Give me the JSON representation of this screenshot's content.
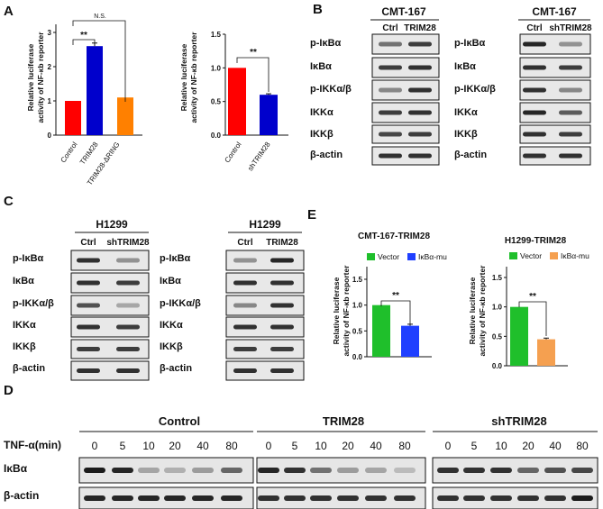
{
  "panel_labels": {
    "a": "A",
    "b": "B",
    "c": "C",
    "d": "D",
    "e": "E"
  },
  "panel_a": {
    "ylabel_line1": "Relative luciferase",
    "ylabel_line2": "activity of NF-κb reporter",
    "chart_left": {
      "categories": [
        "Control",
        "TRIM28",
        "TRIM28-ΔRING"
      ],
      "values": [
        1.0,
        2.6,
        1.1
      ],
      "errors": [
        0.0,
        0.09,
        0.0
      ],
      "colors": [
        "#ff0000",
        "#0000cc",
        "#ff8000"
      ],
      "ylim": [
        0,
        3
      ],
      "yticks": [
        "0",
        "1",
        "2",
        "3"
      ],
      "sig1": "**",
      "sig2": "N.S."
    },
    "chart_right": {
      "categories": [
        "Control",
        "shTRIM28"
      ],
      "values": [
        1.0,
        0.6
      ],
      "errors": [
        0.0,
        0.015
      ],
      "colors": [
        "#ff0000",
        "#0000cc"
      ],
      "ylim": [
        0,
        1.5
      ],
      "yticks": [
        "0.0",
        "0.5",
        "1.0",
        "1.5"
      ],
      "sig": "**"
    }
  },
  "panel_b": {
    "left": {
      "cell": "CMT-167",
      "lanes": [
        "Ctrl",
        "TRIM28"
      ]
    },
    "right": {
      "cell": "CMT-167",
      "lanes": [
        "Ctrl",
        "shTRIM28"
      ]
    },
    "rows": [
      "p-IκBα",
      "IκBα",
      "p-IKKα/β",
      "IKKα",
      "IKKβ",
      "β-actin"
    ]
  },
  "panel_c": {
    "left": {
      "cell": "H1299",
      "lanes": [
        "Ctrl",
        "shTRIM28"
      ]
    },
    "right": {
      "cell": "H1299",
      "lanes": [
        "Ctrl",
        "TRIM28"
      ]
    },
    "rows": [
      "p-IκBα",
      "IκBα",
      "p-IKKα/β",
      "IKKα",
      "IKKβ",
      "β-actin"
    ]
  },
  "panel_e": {
    "ylabel_line1": "Relative luciferase",
    "ylabel_line2": "activity of NF-κb reporter",
    "chart_left": {
      "title": "CMT-167-TRIM28",
      "legend": [
        "Vector",
        "IκBα-mu"
      ],
      "values": [
        1.0,
        0.6
      ],
      "errors": [
        0.0,
        0.03
      ],
      "colors": [
        "#1fbf2b",
        "#1f3fff"
      ],
      "ylim": [
        0,
        1.5
      ],
      "yticks": [
        "0.0",
        "0.5",
        "1.0",
        "1.5"
      ],
      "sig": "**"
    },
    "chart_right": {
      "title": "H1299-TRIM28",
      "legend": [
        "Vector",
        "IκBα-mu"
      ],
      "values": [
        1.0,
        0.45
      ],
      "errors": [
        0.0,
        0.02
      ],
      "colors": [
        "#1fbf2b",
        "#f5a050"
      ],
      "ylim": [
        0,
        1.5
      ],
      "yticks": [
        "0.0",
        "0.5",
        "1.0",
        "1.5"
      ],
      "sig": "**"
    }
  },
  "panel_d": {
    "treatment_label": "TNF-α(min)",
    "groups": [
      "Control",
      "TRIM28",
      "shTRIM28"
    ],
    "timepoints": [
      "0",
      "5",
      "10",
      "20",
      "40",
      "80"
    ],
    "rows": [
      "IκBα",
      "β-actin"
    ]
  }
}
